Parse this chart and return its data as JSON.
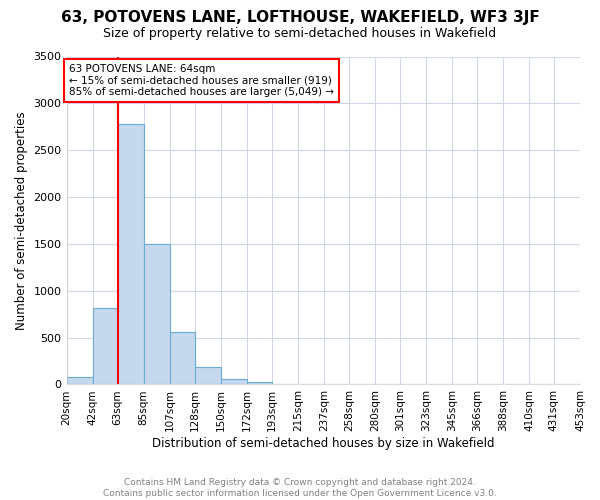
{
  "title": "63, POTOVENS LANE, LOFTHOUSE, WAKEFIELD, WF3 3JF",
  "subtitle": "Size of property relative to semi-detached houses in Wakefield",
  "xlabel": "Distribution of semi-detached houses by size in Wakefield",
  "ylabel": "Number of semi-detached properties",
  "footer": "Contains HM Land Registry data © Crown copyright and database right 2024.\nContains public sector information licensed under the Open Government Licence v3.0.",
  "bin_edges": [
    20,
    42,
    63,
    85,
    107,
    128,
    150,
    172,
    193,
    215,
    237,
    258,
    280,
    301,
    323,
    345,
    366,
    388,
    410,
    431,
    453
  ],
  "bin_labels": [
    "20sqm",
    "42sqm",
    "63sqm",
    "85sqm",
    "107sqm",
    "128sqm",
    "150sqm",
    "172sqm",
    "193sqm",
    "215sqm",
    "237sqm",
    "258sqm",
    "280sqm",
    "301sqm",
    "323sqm",
    "345sqm",
    "366sqm",
    "388sqm",
    "410sqm",
    "431sqm",
    "453sqm"
  ],
  "values": [
    75,
    820,
    2780,
    1500,
    560,
    185,
    55,
    30,
    0,
    0,
    0,
    0,
    0,
    0,
    0,
    0,
    0,
    0,
    0,
    0
  ],
  "bar_color": "#c5d8ed",
  "bar_edge_color": "#6aabd2",
  "property_line_x": 63,
  "annotation_text": "63 POTOVENS LANE: 64sqm\n← 15% of semi-detached houses are smaller (919)\n85% of semi-detached houses are larger (5,049) →",
  "annotation_box_color": "white",
  "annotation_box_edge_color": "red",
  "ylim": [
    0,
    3500
  ],
  "yticks": [
    0,
    500,
    1000,
    1500,
    2000,
    2500,
    3000,
    3500
  ],
  "grid_color": "#d0d8e8",
  "background_color": "#ffffff",
  "plot_bg_color": "#ffffff",
  "title_fontsize": 11,
  "subtitle_fontsize": 9,
  "axis_fontsize": 8.5,
  "tick_fontsize": 8,
  "footer_fontsize": 6.5
}
